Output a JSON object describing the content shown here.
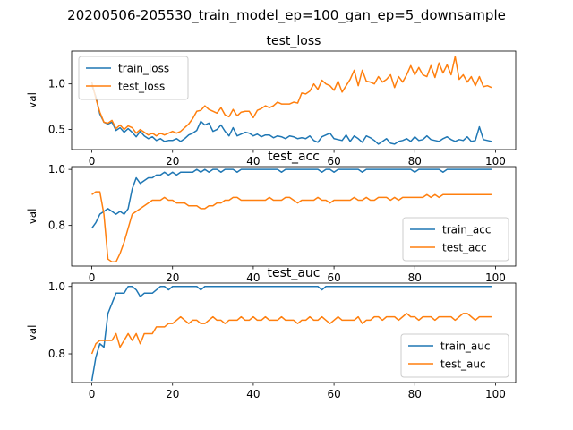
{
  "suptitle": "20200506-205530_train_model_ep=100_gan_ep=5_downsample",
  "colors": {
    "train": "#1f77b4",
    "test": "#ff7f0e"
  },
  "chart_data": [
    {
      "type": "line",
      "title": "test_loss",
      "xlabel": "",
      "ylabel": "val",
      "xlim": [
        -5,
        105
      ],
      "ylim": [
        0.28,
        1.36
      ],
      "xticks": [
        0,
        20,
        40,
        60,
        80,
        100
      ],
      "yticks": [
        0.5,
        1.0
      ],
      "ytick_labels": [
        "0.5",
        "1.0"
      ],
      "legend_loc": "upper left",
      "series": [
        {
          "name": "train_loss",
          "values": [
            0.99,
            0.86,
            0.67,
            0.58,
            0.56,
            0.58,
            0.49,
            0.52,
            0.47,
            0.51,
            0.47,
            0.42,
            0.48,
            0.43,
            0.4,
            0.42,
            0.38,
            0.4,
            0.37,
            0.38,
            0.38,
            0.4,
            0.37,
            0.4,
            0.44,
            0.46,
            0.49,
            0.59,
            0.55,
            0.57,
            0.48,
            0.5,
            0.55,
            0.48,
            0.43,
            0.52,
            0.43,
            0.45,
            0.47,
            0.46,
            0.43,
            0.45,
            0.42,
            0.44,
            0.44,
            0.41,
            0.43,
            0.42,
            0.4,
            0.43,
            0.42,
            0.4,
            0.41,
            0.4,
            0.43,
            0.38,
            0.36,
            0.42,
            0.44,
            0.46,
            0.4,
            0.39,
            0.38,
            0.44,
            0.37,
            0.43,
            0.4,
            0.36,
            0.43,
            0.41,
            0.38,
            0.34,
            0.37,
            0.4,
            0.35,
            0.34,
            0.37,
            0.38,
            0.4,
            0.37,
            0.42,
            0.38,
            0.39,
            0.43,
            0.39,
            0.38,
            0.37,
            0.4,
            0.42,
            0.39,
            0.37,
            0.39,
            0.38,
            0.42,
            0.37,
            0.38,
            0.53,
            0.39,
            0.38,
            0.37
          ]
        },
        {
          "name": "test_loss",
          "values": [
            1.02,
            0.84,
            0.69,
            0.58,
            0.57,
            0.6,
            0.51,
            0.55,
            0.5,
            0.54,
            0.52,
            0.46,
            0.5,
            0.47,
            0.44,
            0.46,
            0.43,
            0.46,
            0.44,
            0.46,
            0.48,
            0.46,
            0.48,
            0.52,
            0.56,
            0.62,
            0.7,
            0.71,
            0.76,
            0.72,
            0.7,
            0.68,
            0.74,
            0.66,
            0.64,
            0.72,
            0.65,
            0.69,
            0.7,
            0.7,
            0.63,
            0.71,
            0.73,
            0.76,
            0.74,
            0.76,
            0.8,
            0.78,
            0.78,
            0.78,
            0.8,
            0.79,
            0.9,
            0.89,
            0.92,
            1.0,
            0.94,
            1.04,
            1.0,
            0.98,
            0.93,
            1.03,
            0.91,
            0.98,
            1.05,
            1.15,
            0.98,
            1.15,
            1.03,
            1.02,
            1.0,
            1.08,
            1.02,
            1.05,
            1.1,
            0.96,
            1.08,
            1.02,
            1.1,
            1.2,
            1.1,
            1.18,
            1.1,
            1.08,
            1.2,
            1.07,
            1.23,
            1.12,
            1.21,
            1.1,
            1.3,
            1.05,
            1.1,
            1.02,
            1.08,
            0.98,
            1.08,
            0.97,
            0.98,
            0.96
          ]
        }
      ]
    },
    {
      "type": "line",
      "title": "test_acc",
      "xlabel": "",
      "ylabel": "val",
      "xlim": [
        -5,
        105
      ],
      "ylim": [
        0.655,
        1.01
      ],
      "xticks": [
        0,
        20,
        40,
        60,
        80,
        100
      ],
      "yticks": [
        0.8,
        1.0
      ],
      "ytick_labels": [
        "0.8",
        "1.0"
      ],
      "legend_loc": "lower right",
      "series": [
        {
          "name": "train_acc",
          "values": [
            0.79,
            0.81,
            0.84,
            0.85,
            0.86,
            0.85,
            0.84,
            0.85,
            0.84,
            0.86,
            0.93,
            0.97,
            0.95,
            0.96,
            0.97,
            0.97,
            0.98,
            0.98,
            0.99,
            0.98,
            0.99,
            0.98,
            0.99,
            0.99,
            0.99,
            0.99,
            1.0,
            0.99,
            1.0,
            0.99,
            1.0,
            1.0,
            0.99,
            1.0,
            1.0,
            1.0,
            0.99,
            1.0,
            1.0,
            1.0,
            1.0,
            1.0,
            1.0,
            1.0,
            1.0,
            1.0,
            1.0,
            0.99,
            1.0,
            1.0,
            1.0,
            1.0,
            1.0,
            1.0,
            1.0,
            1.0,
            1.0,
            0.99,
            1.0,
            1.0,
            0.99,
            1.0,
            1.0,
            1.0,
            1.0,
            1.0,
            1.0,
            0.99,
            1.0,
            1.0,
            1.0,
            1.0,
            1.0,
            1.0,
            1.0,
            1.0,
            1.0,
            1.0,
            1.0,
            1.0,
            0.99,
            1.0,
            1.0,
            1.0,
            1.0,
            1.0,
            1.0,
            0.99,
            1.0,
            1.0,
            1.0,
            1.0,
            1.0,
            1.0,
            1.0,
            1.0,
            1.0,
            1.0,
            1.0,
            1.0
          ]
        },
        {
          "name": "test_acc",
          "values": [
            0.91,
            0.92,
            0.92,
            0.84,
            0.68,
            0.67,
            0.67,
            0.7,
            0.74,
            0.79,
            0.84,
            0.85,
            0.86,
            0.87,
            0.88,
            0.89,
            0.89,
            0.89,
            0.9,
            0.89,
            0.89,
            0.88,
            0.88,
            0.88,
            0.87,
            0.87,
            0.87,
            0.86,
            0.86,
            0.87,
            0.87,
            0.88,
            0.88,
            0.89,
            0.89,
            0.9,
            0.9,
            0.89,
            0.89,
            0.89,
            0.89,
            0.89,
            0.89,
            0.89,
            0.9,
            0.89,
            0.89,
            0.89,
            0.9,
            0.9,
            0.89,
            0.88,
            0.89,
            0.89,
            0.89,
            0.89,
            0.9,
            0.89,
            0.89,
            0.88,
            0.89,
            0.89,
            0.89,
            0.89,
            0.89,
            0.9,
            0.89,
            0.89,
            0.9,
            0.89,
            0.89,
            0.9,
            0.9,
            0.9,
            0.89,
            0.9,
            0.89,
            0.9,
            0.9,
            0.9,
            0.9,
            0.9,
            0.9,
            0.91,
            0.9,
            0.91,
            0.9,
            0.91,
            0.91,
            0.91,
            0.91,
            0.91,
            0.91,
            0.91,
            0.91,
            0.91,
            0.91,
            0.91,
            0.91,
            0.91
          ]
        }
      ]
    },
    {
      "type": "line",
      "title": "test_auc",
      "xlabel": "",
      "ylabel": "val",
      "xlim": [
        -5,
        105
      ],
      "ylim": [
        0.715,
        1.01
      ],
      "xticks": [
        0,
        20,
        40,
        60,
        80,
        100
      ],
      "yticks": [
        0.8,
        1.0
      ],
      "ytick_labels": [
        "0.8",
        "1.0"
      ],
      "legend_loc": "lower right",
      "series": [
        {
          "name": "train_auc",
          "values": [
            0.72,
            0.79,
            0.83,
            0.82,
            0.92,
            0.95,
            0.98,
            0.98,
            0.98,
            1.0,
            1.0,
            0.99,
            0.97,
            0.98,
            0.98,
            0.98,
            0.99,
            1.0,
            1.0,
            0.99,
            1.0,
            1.0,
            1.0,
            1.0,
            1.0,
            1.0,
            1.0,
            0.99,
            1.0,
            1.0,
            1.0,
            1.0,
            1.0,
            1.0,
            1.0,
            1.0,
            1.0,
            1.0,
            1.0,
            1.0,
            1.0,
            1.0,
            1.0,
            1.0,
            1.0,
            1.0,
            1.0,
            1.0,
            1.0,
            1.0,
            1.0,
            1.0,
            1.0,
            1.0,
            1.0,
            1.0,
            1.0,
            0.99,
            1.0,
            1.0,
            1.0,
            1.0,
            1.0,
            1.0,
            1.0,
            1.0,
            1.0,
            1.0,
            1.0,
            1.0,
            1.0,
            1.0,
            1.0,
            1.0,
            1.0,
            1.0,
            1.0,
            1.0,
            1.0,
            1.0,
            1.0,
            1.0,
            1.0,
            1.0,
            1.0,
            1.0,
            1.0,
            1.0,
            1.0,
            1.0,
            1.0,
            1.0,
            1.0,
            1.0,
            1.0,
            1.0,
            1.0,
            1.0,
            1.0,
            1.0
          ]
        },
        {
          "name": "test_auc",
          "values": [
            0.8,
            0.83,
            0.84,
            0.84,
            0.84,
            0.84,
            0.86,
            0.82,
            0.84,
            0.86,
            0.84,
            0.86,
            0.83,
            0.86,
            0.86,
            0.86,
            0.88,
            0.88,
            0.88,
            0.89,
            0.89,
            0.9,
            0.91,
            0.9,
            0.89,
            0.9,
            0.9,
            0.89,
            0.89,
            0.9,
            0.91,
            0.9,
            0.9,
            0.89,
            0.9,
            0.9,
            0.9,
            0.91,
            0.9,
            0.9,
            0.91,
            0.9,
            0.9,
            0.91,
            0.9,
            0.9,
            0.9,
            0.91,
            0.9,
            0.9,
            0.9,
            0.89,
            0.9,
            0.9,
            0.91,
            0.9,
            0.9,
            0.91,
            0.9,
            0.89,
            0.9,
            0.91,
            0.9,
            0.9,
            0.9,
            0.9,
            0.91,
            0.89,
            0.9,
            0.9,
            0.91,
            0.91,
            0.9,
            0.91,
            0.91,
            0.91,
            0.9,
            0.91,
            0.92,
            0.91,
            0.91,
            0.9,
            0.91,
            0.91,
            0.91,
            0.9,
            0.91,
            0.91,
            0.91,
            0.91,
            0.9,
            0.91,
            0.92,
            0.92,
            0.91,
            0.9,
            0.91,
            0.91,
            0.91,
            0.91
          ]
        }
      ]
    }
  ]
}
